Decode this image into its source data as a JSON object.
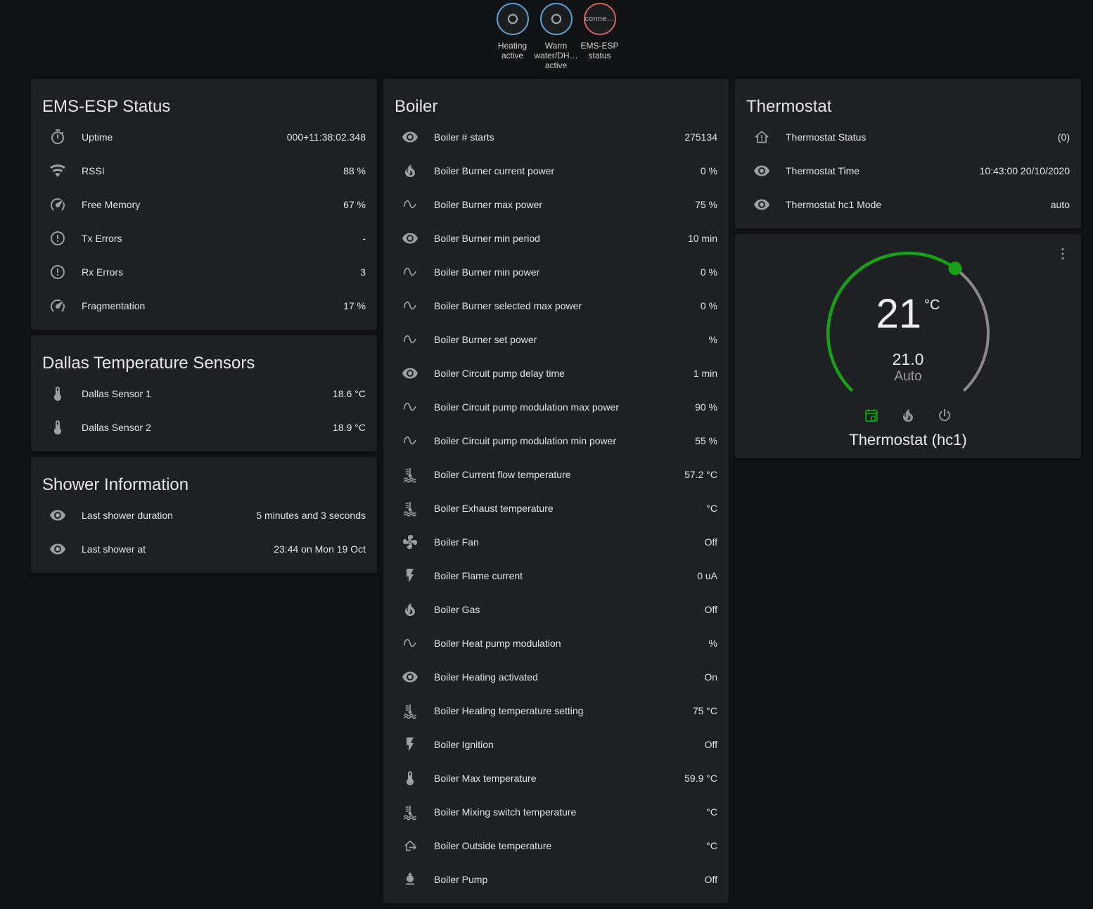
{
  "colors": {
    "accent_green": "#17a117",
    "badge_blue": "#5c9fd4",
    "badge_red": "#cf6161",
    "card_background": "#1e2023",
    "page_background": "#111213"
  },
  "badges": [
    {
      "icon": "circle-ring",
      "text": "",
      "label": "Heating active",
      "border": "blue"
    },
    {
      "icon": "circle-ring",
      "text": "",
      "label": "Warm water/DH… active",
      "border": "blue"
    },
    {
      "icon": "",
      "text": "conne…",
      "label": "EMS-ESP status",
      "border": "red"
    }
  ],
  "cards": {
    "ems_status": {
      "title": "EMS-ESP Status",
      "rows": [
        {
          "icon": "timer",
          "label": "Uptime",
          "value": "000+11:38:02.348"
        },
        {
          "icon": "wifi",
          "label": "RSSI",
          "value": "88 %"
        },
        {
          "icon": "gauge",
          "label": "Free Memory",
          "value": "67 %"
        },
        {
          "icon": "alert-circle",
          "label": "Tx Errors",
          "value": "-"
        },
        {
          "icon": "alert-circle",
          "label": "Rx Errors",
          "value": "3"
        },
        {
          "icon": "gauge",
          "label": "Fragmentation",
          "value": "17 %"
        }
      ]
    },
    "dallas": {
      "title": "Dallas Temperature Sensors",
      "rows": [
        {
          "icon": "thermometer",
          "label": "Dallas Sensor 1",
          "value": "18.6 °C"
        },
        {
          "icon": "thermometer",
          "label": "Dallas Sensor 2",
          "value": "18.9 °C"
        }
      ]
    },
    "shower": {
      "title": "Shower Information",
      "rows": [
        {
          "icon": "eye",
          "label": "Last shower duration",
          "value": "5 minutes and 3 seconds"
        },
        {
          "icon": "eye",
          "label": "Last shower at",
          "value": "23:44 on Mon 19 Oct"
        }
      ]
    },
    "boiler": {
      "title": "Boiler",
      "rows": [
        {
          "icon": "eye",
          "label": "Boiler # starts",
          "value": "275134"
        },
        {
          "icon": "fire",
          "label": "Boiler Burner current power",
          "value": "0 %"
        },
        {
          "icon": "sine",
          "label": "Boiler Burner max power",
          "value": "75 %"
        },
        {
          "icon": "eye",
          "label": "Boiler Burner min period",
          "value": "10 min"
        },
        {
          "icon": "sine",
          "label": "Boiler Burner min power",
          "value": "0 %"
        },
        {
          "icon": "sine",
          "label": "Boiler Burner selected max power",
          "value": "0 %"
        },
        {
          "icon": "sine",
          "label": "Boiler Burner set power",
          "value": "%"
        },
        {
          "icon": "eye",
          "label": "Boiler Circuit pump delay time",
          "value": "1 min"
        },
        {
          "icon": "sine",
          "label": "Boiler Circuit pump modulation max power",
          "value": "90 %"
        },
        {
          "icon": "sine",
          "label": "Boiler Circuit pump modulation min power",
          "value": "55 %"
        },
        {
          "icon": "coolant",
          "label": "Boiler Current flow temperature",
          "value": "57.2 °C"
        },
        {
          "icon": "coolant",
          "label": "Boiler Exhaust temperature",
          "value": "°C"
        },
        {
          "icon": "fan",
          "label": "Boiler Fan",
          "value": "Off"
        },
        {
          "icon": "flash",
          "label": "Boiler Flame current",
          "value": "0 uA"
        },
        {
          "icon": "fire",
          "label": "Boiler Gas",
          "value": "Off"
        },
        {
          "icon": "sine",
          "label": "Boiler Heat pump modulation",
          "value": "%"
        },
        {
          "icon": "eye",
          "label": "Boiler Heating activated",
          "value": "On"
        },
        {
          "icon": "coolant",
          "label": "Boiler Heating temperature setting",
          "value": "75 °C"
        },
        {
          "icon": "flash",
          "label": "Boiler Ignition",
          "value": "Off"
        },
        {
          "icon": "thermometer",
          "label": "Boiler Max temperature",
          "value": "59.9 °C"
        },
        {
          "icon": "coolant",
          "label": "Boiler Mixing switch temperature",
          "value": "°C"
        },
        {
          "icon": "home-export",
          "label": "Boiler Outside temperature",
          "value": "°C"
        },
        {
          "icon": "pump",
          "label": "Boiler Pump",
          "value": "Off"
        }
      ]
    },
    "thermostat": {
      "title": "Thermostat",
      "rows": [
        {
          "icon": "home-alert",
          "label": "Thermostat Status",
          "value": "(0)"
        },
        {
          "icon": "eye",
          "label": "Thermostat Time",
          "value": "10:43:00 20/10/2020"
        },
        {
          "icon": "eye",
          "label": "Thermostat hc1 Mode",
          "value": "auto"
        }
      ]
    },
    "dial": {
      "temperature": "21",
      "unit": "°C",
      "setpoint": "21.0",
      "mode_label": "Auto",
      "entity_name": "Thermostat (hc1)",
      "modes": [
        {
          "icon": "calendar-sync",
          "state": "active"
        },
        {
          "icon": "fire",
          "state": ""
        },
        {
          "icon": "power",
          "state": ""
        }
      ]
    }
  }
}
